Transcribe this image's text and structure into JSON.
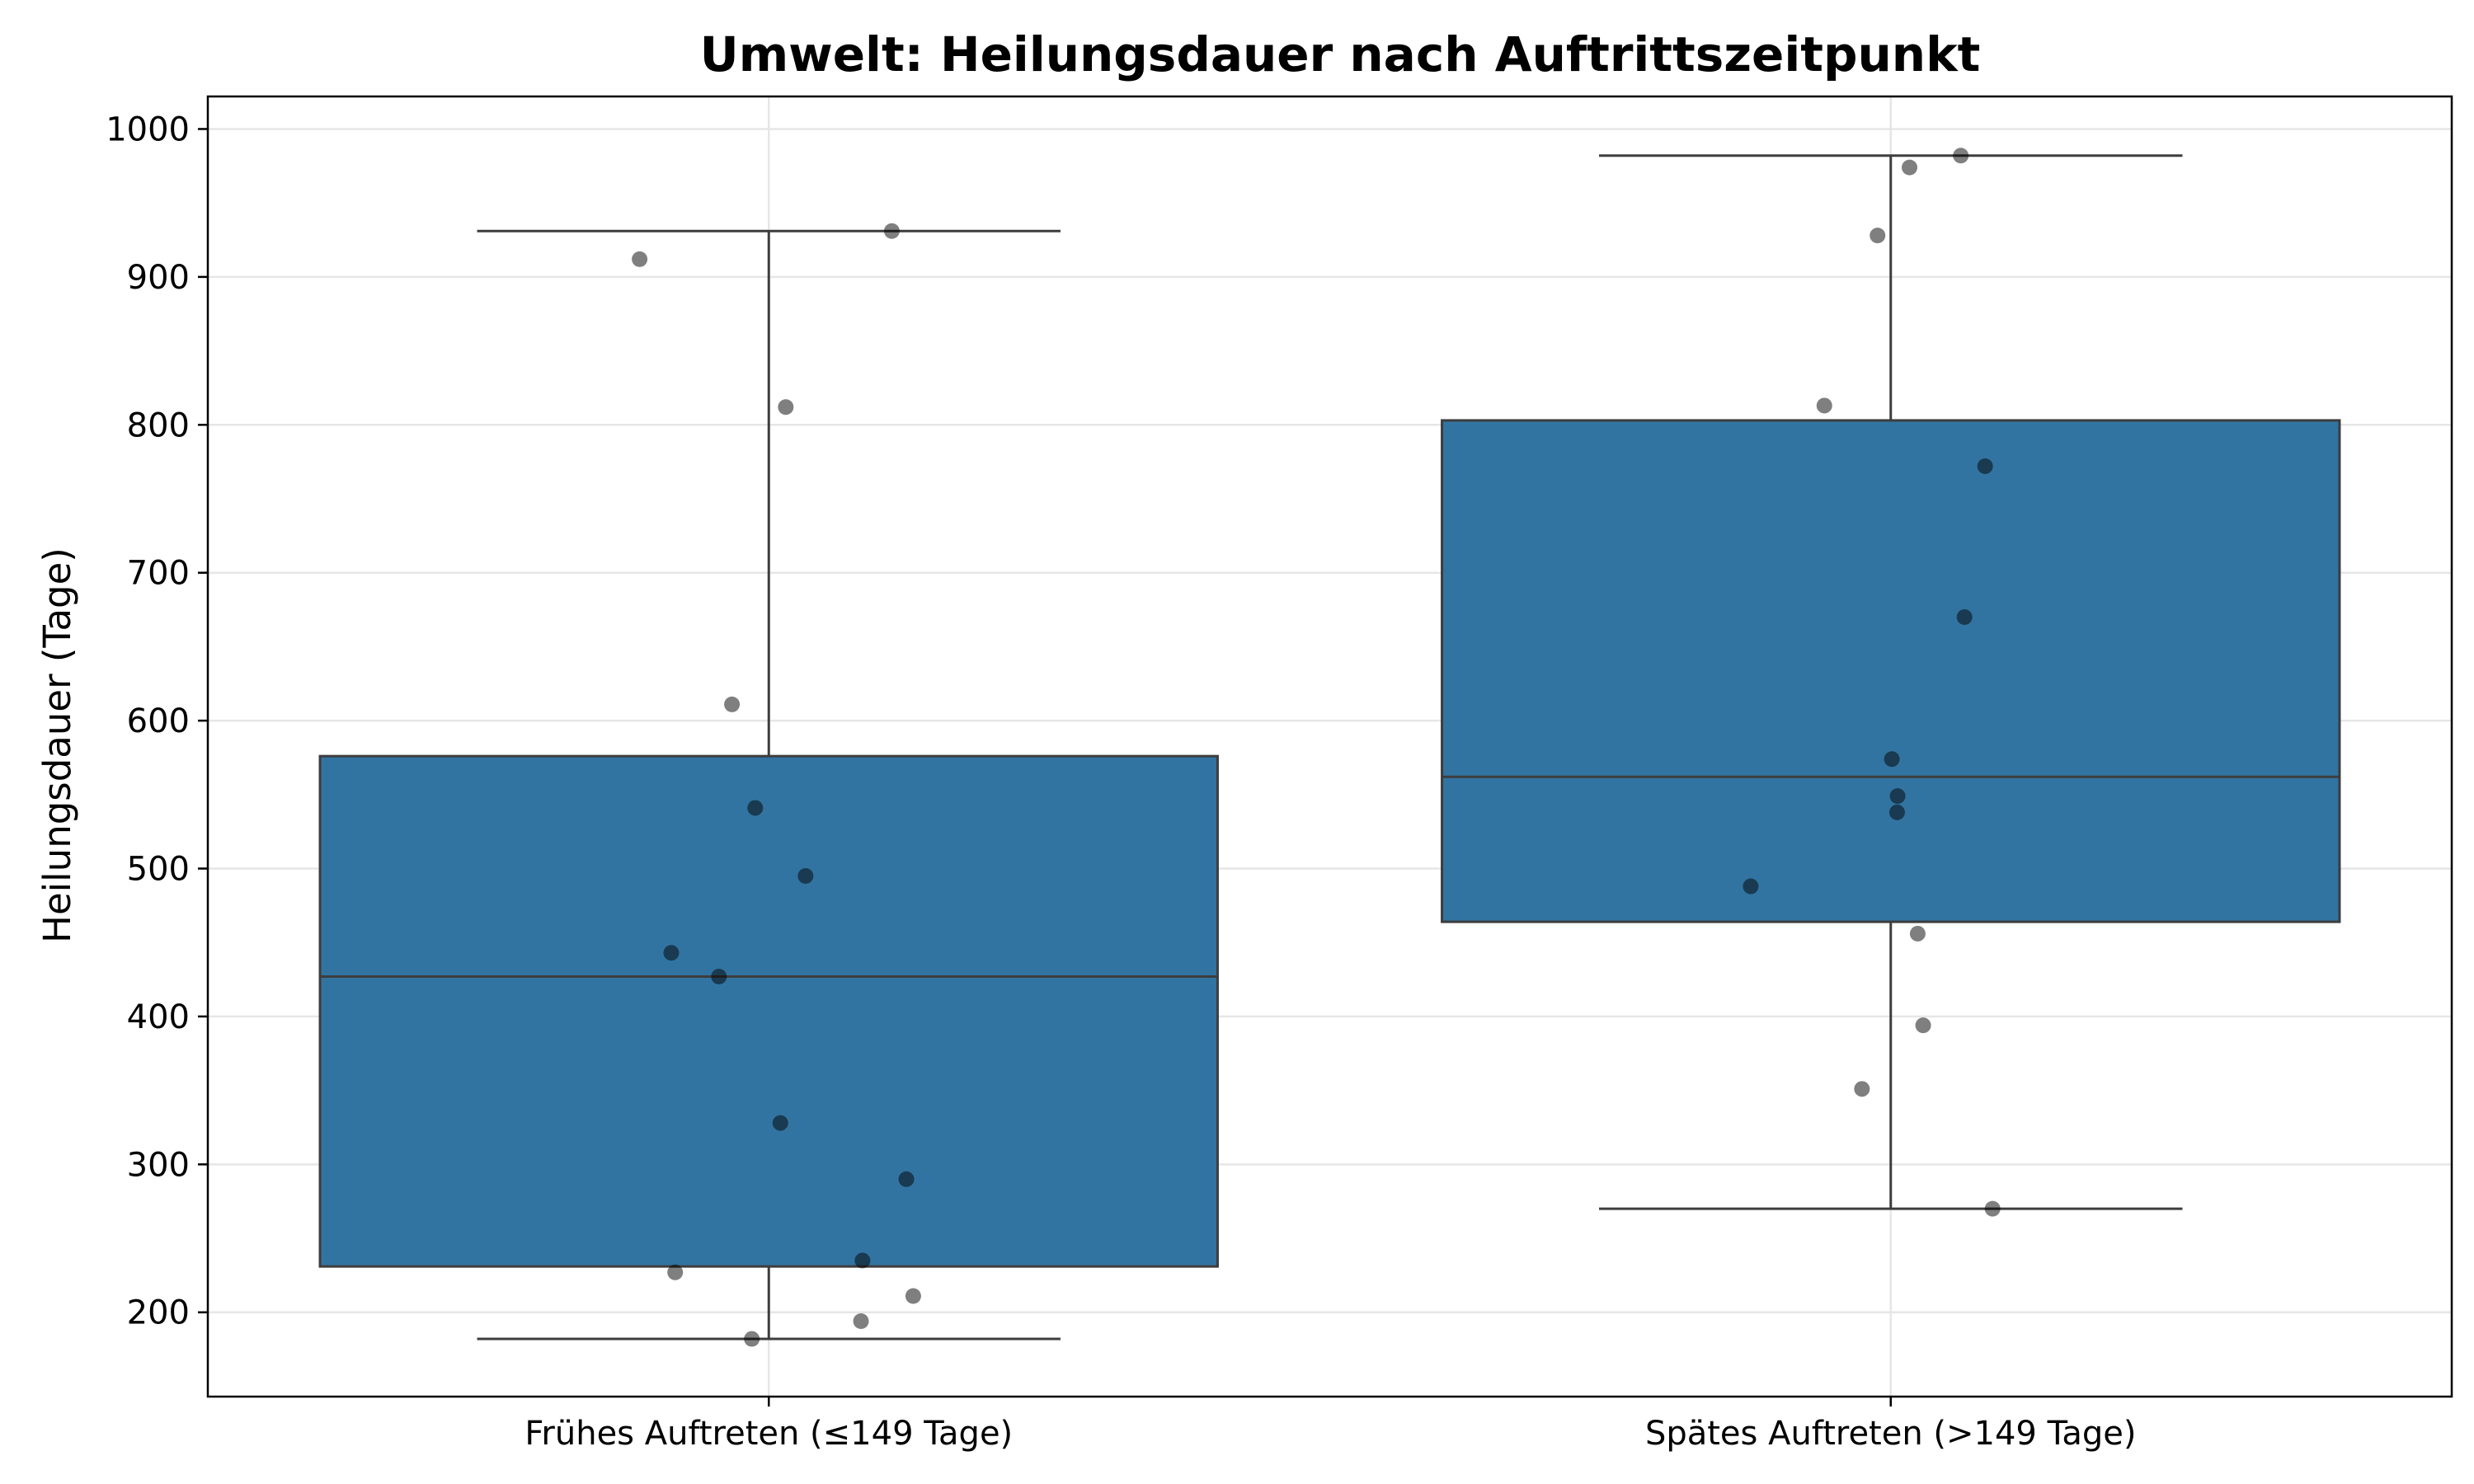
{
  "chart_data": {
    "type": "box",
    "title": "Umwelt: Heilungsdauer nach Auftrittszeitpunkt",
    "xlabel": "",
    "ylabel": "Heilungsdauer (Tage)",
    "ylim": [
      143,
      1022
    ],
    "yticks": [
      200,
      300,
      400,
      500,
      600,
      700,
      800,
      900,
      1000
    ],
    "grid": true,
    "box_color": "#3274a1",
    "point_color": "#000000",
    "categories": [
      "Frühes Auftreten (≤149 Tage)",
      "Spätes Auftreten (>149 Tage)"
    ],
    "boxes": [
      {
        "whisker_low": 182,
        "q1": 231,
        "median": 427,
        "q3": 576,
        "whisker_high": 931,
        "points": [
          931,
          912,
          812,
          611,
          541,
          495,
          443,
          427,
          328,
          290,
          235,
          227,
          211,
          194,
          182
        ]
      },
      {
        "whisker_low": 270,
        "q1": 464,
        "median": 562,
        "q3": 803,
        "whisker_high": 982,
        "points": [
          982,
          974,
          928,
          813,
          772,
          670,
          574,
          549,
          538,
          488,
          456,
          394,
          351,
          270
        ]
      }
    ]
  }
}
